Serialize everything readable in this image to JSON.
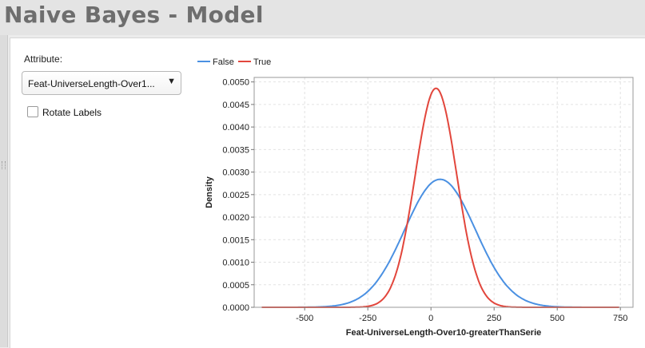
{
  "window": {
    "title": "Naive Bayes - Model"
  },
  "controls": {
    "attribute_label": "Attribute:",
    "attribute_value": "Feat-UniverseLength-Over1...",
    "rotate_labels": {
      "label": "Rotate Labels",
      "checked": false
    }
  },
  "colors": {
    "false_series": "#4a90e2",
    "true_series": "#e2463c"
  },
  "chart_data": {
    "type": "line",
    "xlabel": "Feat-UniverseLength-Over10-greaterThanSerie",
    "ylabel": "Density",
    "xlim": [
      -700,
      800
    ],
    "ylim": [
      0,
      0.0051
    ],
    "x_ticks": [
      "-500",
      "-250",
      "0",
      "250",
      "500",
      "750"
    ],
    "y_ticks": [
      "0.0000",
      "0.0005",
      "0.0010",
      "0.0015",
      "0.0020",
      "0.0025",
      "0.0030",
      "0.0035",
      "0.0040",
      "0.0045",
      "0.0050"
    ],
    "legend_position": "top-left",
    "grid": true,
    "series": [
      {
        "name": "False",
        "distribution": "normal",
        "mean": 36,
        "sd": 140,
        "peak": 0.00284,
        "x_range": [
          -670,
          745
        ]
      },
      {
        "name": "True",
        "distribution": "normal",
        "mean": 20,
        "sd": 82,
        "peak": 0.00486,
        "x_range": [
          -670,
          745
        ]
      }
    ]
  }
}
